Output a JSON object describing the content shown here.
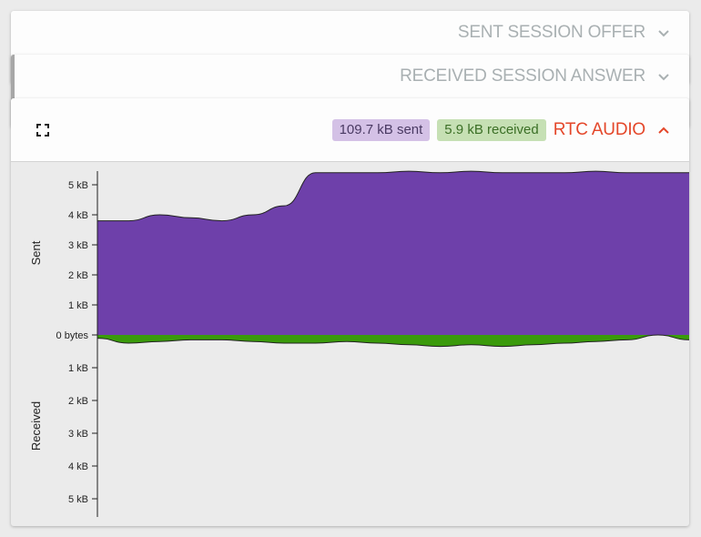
{
  "panels": {
    "offer": {
      "title": "SENT SESSION OFFER"
    },
    "answer": {
      "title": "RECEIVED SESSION ANSWER"
    },
    "audio": {
      "title": "RTC AUDIO",
      "sent_badge": "109.7  kB  sent",
      "received_badge": "5.9  kB  received"
    }
  },
  "colors": {
    "sent": "#6e40aa",
    "received": "#3a9a0b",
    "accent": "#e4472a"
  },
  "icons": [
    "expand-icon",
    "chevron-down-icon",
    "chevron-up-icon"
  ],
  "chart_data": {
    "type": "area",
    "ylabel_top": "Sent",
    "ylabel_bottom": "Received",
    "yticks_top": [
      "5 kB",
      "4 kB",
      "3 kB",
      "2 kB",
      "1 kB"
    ],
    "zero_label": "0 bytes",
    "yticks_bottom": [
      "1 kB",
      "2 kB",
      "3 kB",
      "4 kB",
      "5 kB"
    ],
    "ylim": [
      -5.5,
      5.5
    ],
    "series": [
      {
        "name": "Sent",
        "values": [
          3.8,
          3.8,
          4.0,
          3.9,
          3.8,
          4.0,
          4.3,
          5.4,
          5.4,
          5.4,
          5.45,
          5.4,
          5.45,
          5.4,
          5.4,
          5.4,
          5.45,
          5.4,
          5.4,
          5.4
        ]
      },
      {
        "name": "Received",
        "values": [
          0.1,
          0.25,
          0.2,
          0.15,
          0.15,
          0.2,
          0.25,
          0.25,
          0.2,
          0.25,
          0.3,
          0.35,
          0.3,
          0.35,
          0.3,
          0.25,
          0.2,
          0.15,
          0.0,
          0.15
        ]
      }
    ]
  }
}
